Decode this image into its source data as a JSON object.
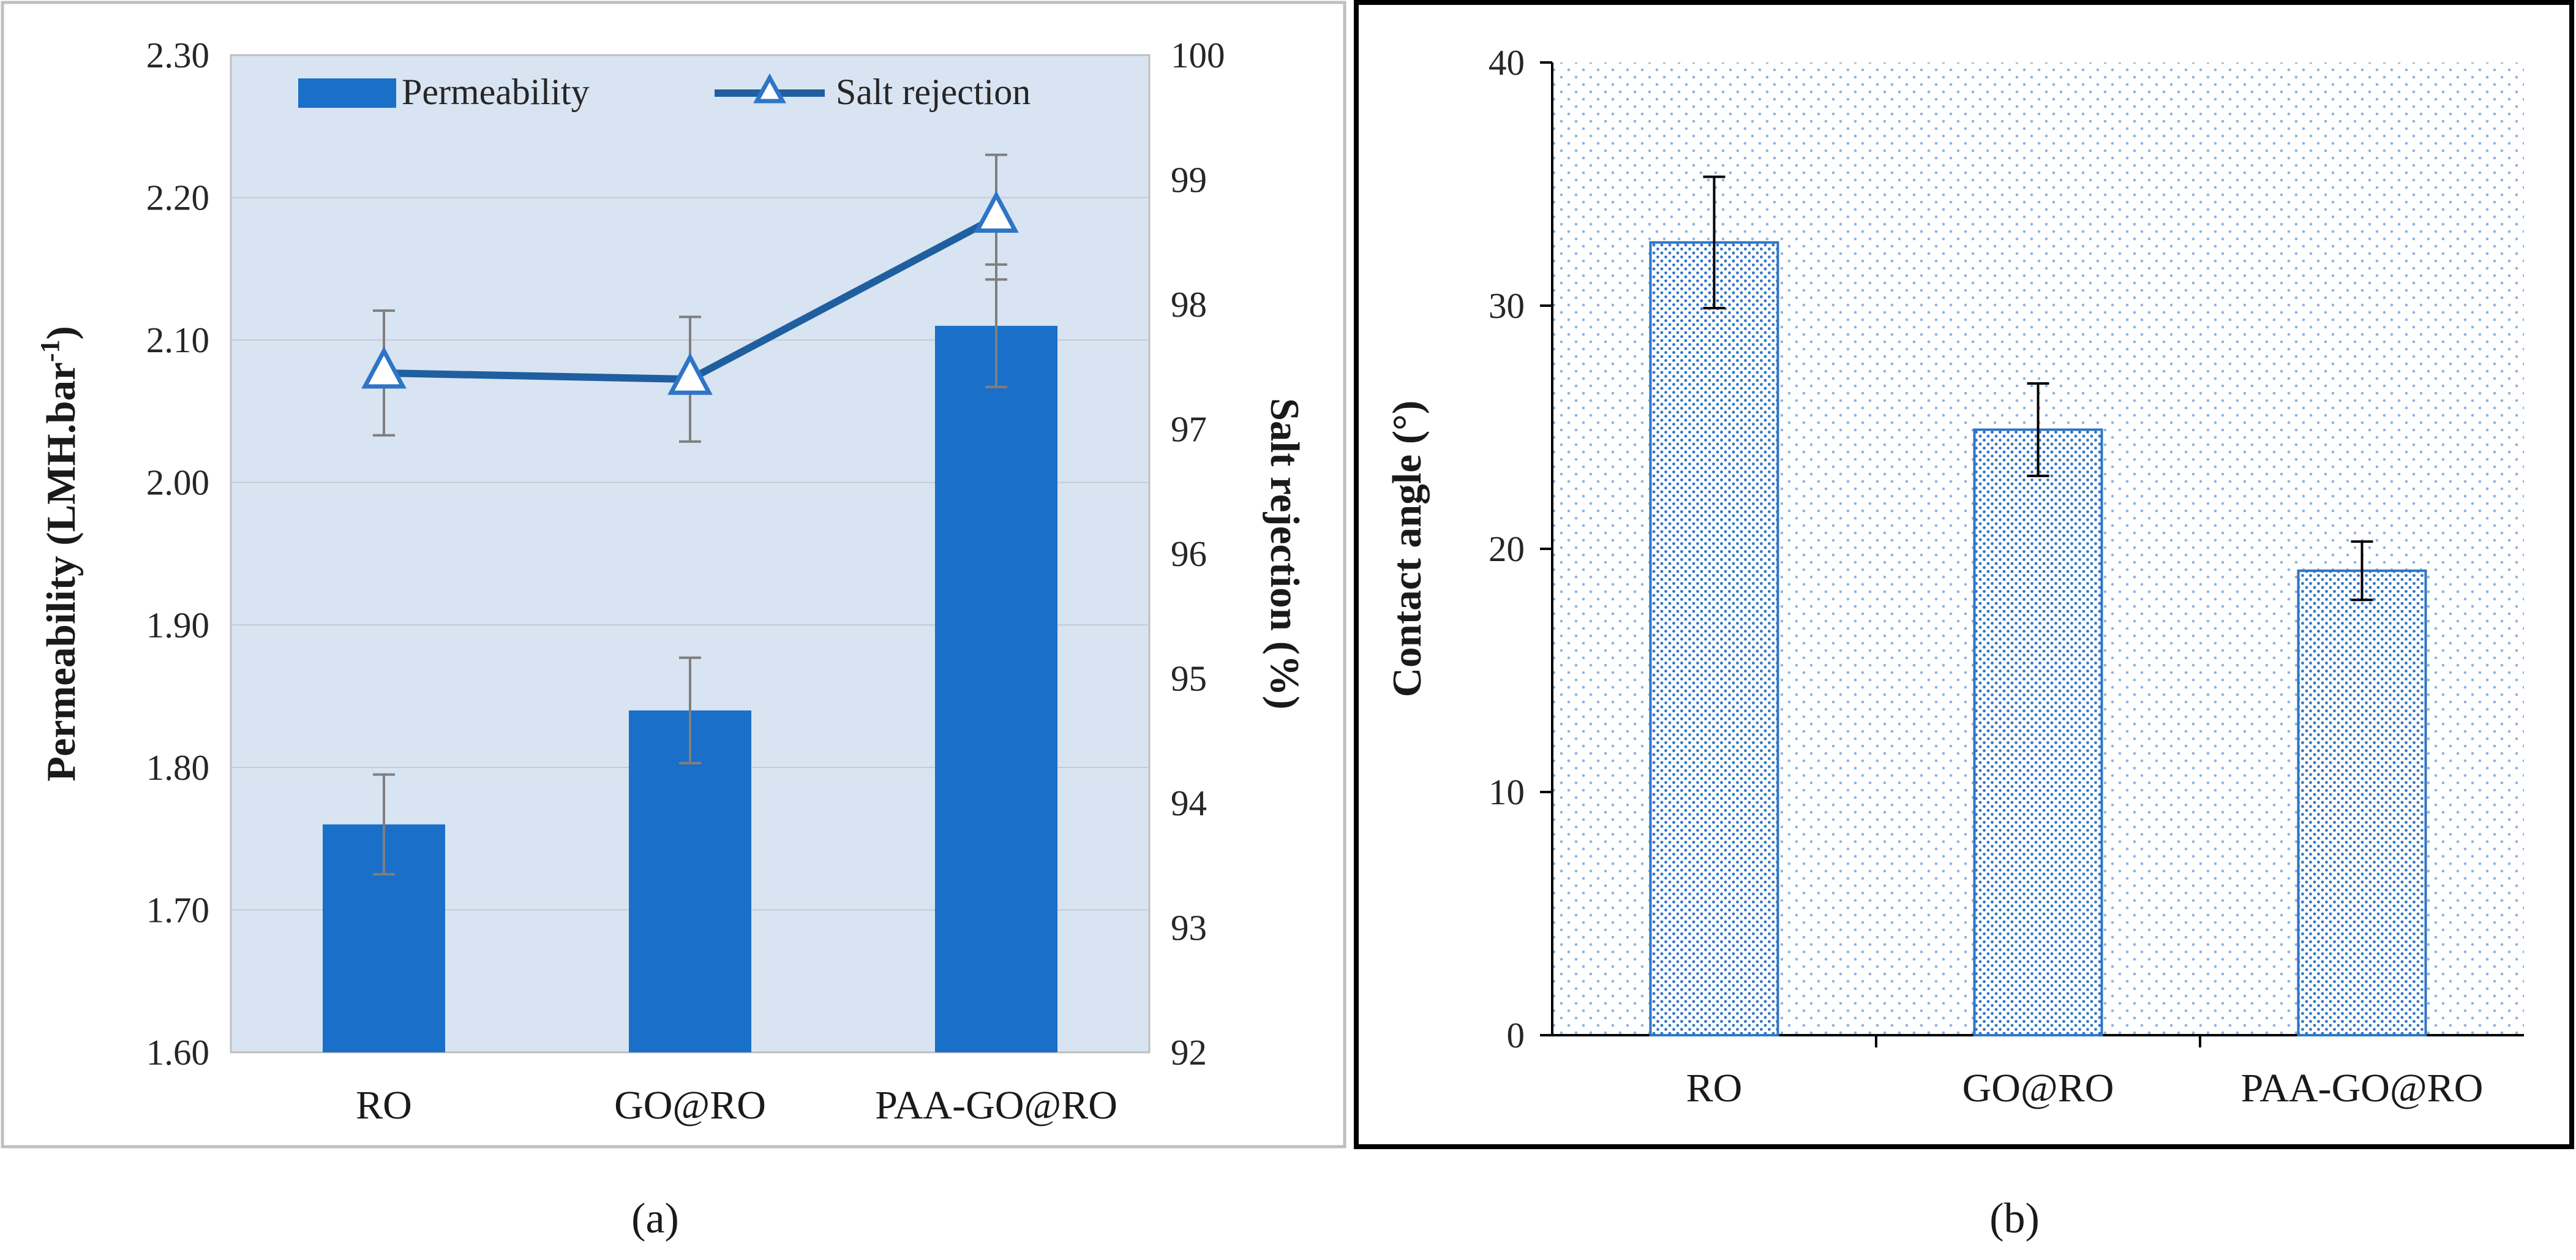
{
  "chart_data": [
    {
      "panel": "(a)",
      "type": "bar",
      "categories": [
        "RO",
        "GO@RO",
        "PAA-GO@RO"
      ],
      "ylabel": "Permeability (LMH.bar-1)",
      "ylabel_main": "Permeability (LMH.bar",
      "ylabel_sup": "-1",
      "ylabel_close": ")",
      "y2label": "Salt rejection (%)",
      "ylim": [
        1.6,
        2.3
      ],
      "y2lim": [
        92,
        100
      ],
      "yticks": [
        "1.60",
        "1.70",
        "1.80",
        "1.90",
        "2.00",
        "2.10",
        "2.20",
        "2.30"
      ],
      "y2ticks": [
        "92",
        "93",
        "94",
        "95",
        "96",
        "97",
        "98",
        "99",
        "100"
      ],
      "grid": true,
      "legend_position": "top",
      "series": [
        {
          "name": "Permeability",
          "kind": "bar",
          "axis": "left",
          "values": [
            1.76,
            1.84,
            2.11
          ],
          "errors": [
            0.035,
            0.037,
            0.043
          ]
        },
        {
          "name": "Salt rejection",
          "kind": "line",
          "marker": "triangle",
          "axis": "right",
          "values": [
            97.45,
            97.4,
            98.7
          ],
          "errors": [
            0.5,
            0.5,
            0.5
          ]
        }
      ],
      "colors": {
        "bar": "#1a6fc9",
        "line": "#1f5f9f",
        "plot_bg": "#d9e4f2",
        "error": "#7f7f7f"
      }
    },
    {
      "panel": "(b)",
      "type": "bar",
      "categories": [
        "RO",
        "GO@RO",
        "PAA-GO@RO"
      ],
      "ylabel": "Contact angle (°)",
      "ylim": [
        0,
        40
      ],
      "yticks": [
        "0",
        "10",
        "20",
        "30",
        "40"
      ],
      "grid": false,
      "series": [
        {
          "kind": "bar",
          "pattern": "dotted",
          "values": [
            32.6,
            24.9,
            19.1
          ],
          "errors": [
            2.7,
            1.9,
            1.2
          ]
        }
      ],
      "colors": {
        "bar_outline": "#2e75c6",
        "dots": "#2e75c6",
        "error": "#000000"
      }
    }
  ],
  "captions": [
    "(a)",
    "(b)"
  ]
}
